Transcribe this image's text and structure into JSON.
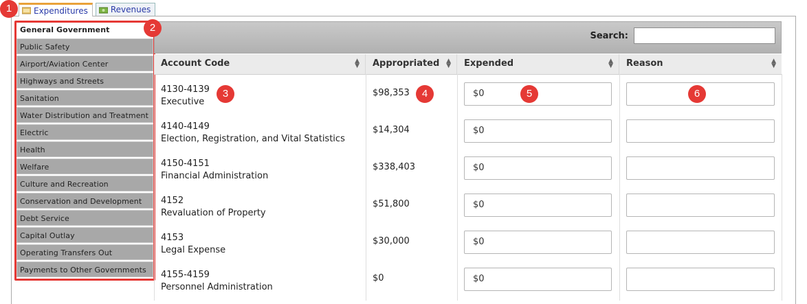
{
  "tabs": [
    {
      "label": "Expenditures",
      "active": true
    },
    {
      "label": "Revenues",
      "active": false
    }
  ],
  "sidebar": {
    "items": [
      {
        "label": "General Government",
        "active": true
      },
      {
        "label": "Public Safety"
      },
      {
        "label": "Airport/Aviation Center"
      },
      {
        "label": "Highways and Streets"
      },
      {
        "label": "Sanitation"
      },
      {
        "label": "Water Distribution and Treatment"
      },
      {
        "label": "Electric"
      },
      {
        "label": "Health"
      },
      {
        "label": "Welfare"
      },
      {
        "label": "Culture and Recreation"
      },
      {
        "label": "Conservation and Development"
      },
      {
        "label": "Debt Service"
      },
      {
        "label": "Capital Outlay"
      },
      {
        "label": "Operating Transfers Out"
      },
      {
        "label": "Payments to Other Governments"
      }
    ]
  },
  "search": {
    "label": "Search:",
    "value": ""
  },
  "table": {
    "columns": [
      "Account Code",
      "Appropriated",
      "Expended",
      "Reason"
    ],
    "rows": [
      {
        "code": "4130-4139",
        "name": "Executive",
        "appropriated": "$98,353",
        "expended": "$0",
        "reason": ""
      },
      {
        "code": "4140-4149",
        "name": "Election, Registration, and Vital Statistics",
        "appropriated": "$14,304",
        "expended": "$0",
        "reason": ""
      },
      {
        "code": "4150-4151",
        "name": "Financial Administration",
        "appropriated": "$338,403",
        "expended": "$0",
        "reason": ""
      },
      {
        "code": "4152",
        "name": "Revaluation of Property",
        "appropriated": "$51,800",
        "expended": "$0",
        "reason": ""
      },
      {
        "code": "4153",
        "name": "Legal Expense",
        "appropriated": "$30,000",
        "expended": "$0",
        "reason": ""
      },
      {
        "code": "4155-4159",
        "name": "Personnel Administration",
        "appropriated": "$0",
        "expended": "$0",
        "reason": ""
      }
    ]
  },
  "badges": [
    "1",
    "2",
    "3",
    "4",
    "5",
    "6"
  ],
  "colors": {
    "badge": "#e53935",
    "tab_accent": "#e9a23a",
    "sidebar_bg": "#a8a8a8"
  }
}
